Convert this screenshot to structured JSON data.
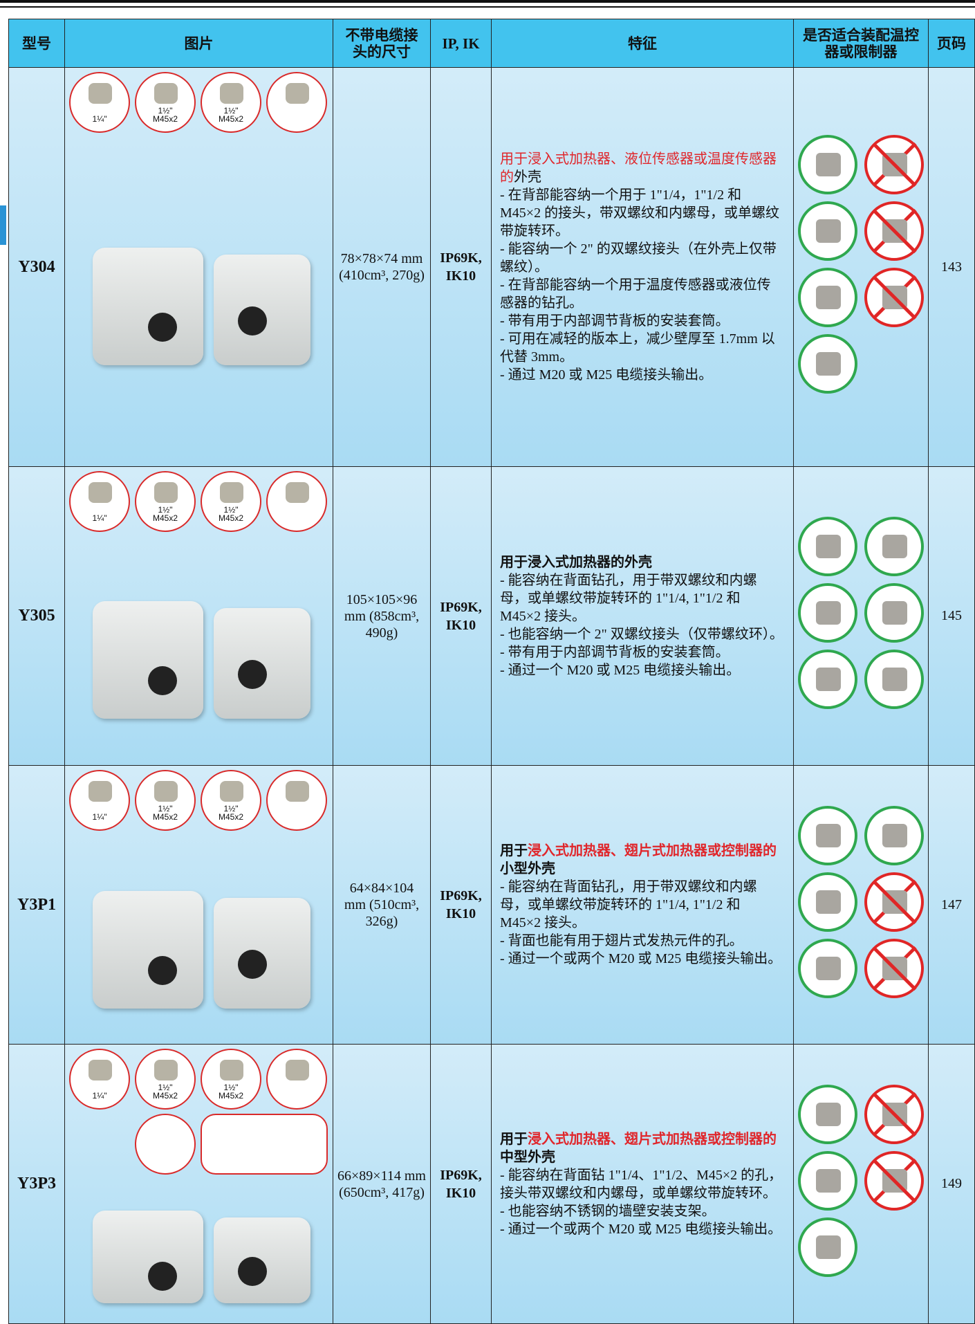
{
  "header": {
    "columns": [
      "型号",
      "图片",
      "不带电缆接头的尺寸",
      "IP, IK",
      "特征",
      "是否适合装配温控器或限制器",
      "页码"
    ]
  },
  "rows": [
    {
      "model": "Y304",
      "fittings": [
        "1¼\"",
        "1½\"\nM45x2",
        "1½\"\nM45x2"
      ],
      "dimensions": "78×78×74 mm (410cm³, 270g)",
      "ip": "IP69K, IK10",
      "title_bold": false,
      "title": [
        {
          "text": "用于浸入式加热器、液位传感器或温度传感器的",
          "color": "#e0262b"
        },
        {
          "text": "外壳",
          "color": "#111111"
        }
      ],
      "features": [
        "- 在背部能容纳一个用于 1\"1/4，1\"1/2 和 M45×2 的接头，带双螺纹和内螺母，或单螺纹带旋转环。",
        "- 能容纳一个 2\" 的双螺纹接头（在外壳上仅带螺纹）。",
        "- 在背部能容纳一个用于温度传感器或液位传感器的钻孔。",
        "- 带有用于内部调节背板的安装套筒。",
        "- 可用在减轻的版本上，减少壁厚至 1.7mm 以代替 3mm。",
        "- 通过 M20 或 M25 电缆接头输出。"
      ],
      "page": "143"
    },
    {
      "model": "Y305",
      "fittings": [
        "1¼\"",
        "1½\"\nM45x2",
        "1½\"\nM45x2"
      ],
      "dimensions": "105×105×96 mm (858cm³, 490g)",
      "ip": "IP69K, IK10",
      "title_bold": true,
      "title": [
        {
          "text": "用于浸入式加热器的外壳",
          "color": "#111111"
        }
      ],
      "features": [
        "- 能容纳在背面钻孔，用于带双螺纹和内螺母，或单螺纹带旋转环的 1\"1/4, 1\"1/2 和 M45×2 接头。",
        "- 也能容纳一个 2\" 双螺纹接头（仅带螺纹环）。",
        "- 带有用于内部调节背板的安装套筒。",
        "- 通过一个 M20 或 M25 电缆接头输出。"
      ],
      "page": "145"
    },
    {
      "model": "Y3P1",
      "fittings": [
        "1¼\"",
        "1½\"\nM45x2",
        "1½\"\nM45x2"
      ],
      "dimensions": "64×84×104 mm (510cm³, 326g)",
      "ip": "IP69K, IK10",
      "title_bold": true,
      "title": [
        {
          "text": "用于",
          "color": "#111111"
        },
        {
          "text": "浸入式加热器、翅片式加热器或控制器的",
          "color": "#e0262b"
        },
        {
          "text": "小型外壳",
          "color": "#111111"
        }
      ],
      "features": [
        "- 能容纳在背面钻孔，用于带双螺纹和内螺母，或单螺纹带旋转环的 1\"1/4, 1\"1/2 和 M45×2 接头。",
        "- 背面也能有用于翅片式发热元件的孔。",
        "- 通过一个或两个 M20 或 M25 电缆接头输出。"
      ],
      "page": "147"
    },
    {
      "model": "Y3P3",
      "fittings": [
        "1¼\"",
        "1½\"\nM45x2",
        "1½\"\nM45x2"
      ],
      "dimensions": "66×89×114 mm (650cm³, 417g)",
      "ip": "IP69K, IK10",
      "title_bold": true,
      "title": [
        {
          "text": "用于",
          "color": "#111111"
        },
        {
          "text": "浸入式加热器、翅片式加热器或控制器的",
          "color": "#e0262b"
        },
        {
          "text": "中型外壳",
          "color": "#111111"
        }
      ],
      "features": [
        "- 能容纳在背面钻 1\"1/4、1\"1/2、M45×2 的孔，接头带双螺纹和内螺母，或单螺纹带旋转环。",
        "- 也能容纳不锈钢的墙壁安装支架。",
        "- 通过一个或两个 M20 或 M25 电缆接头输出。"
      ],
      "page": "149"
    }
  ]
}
